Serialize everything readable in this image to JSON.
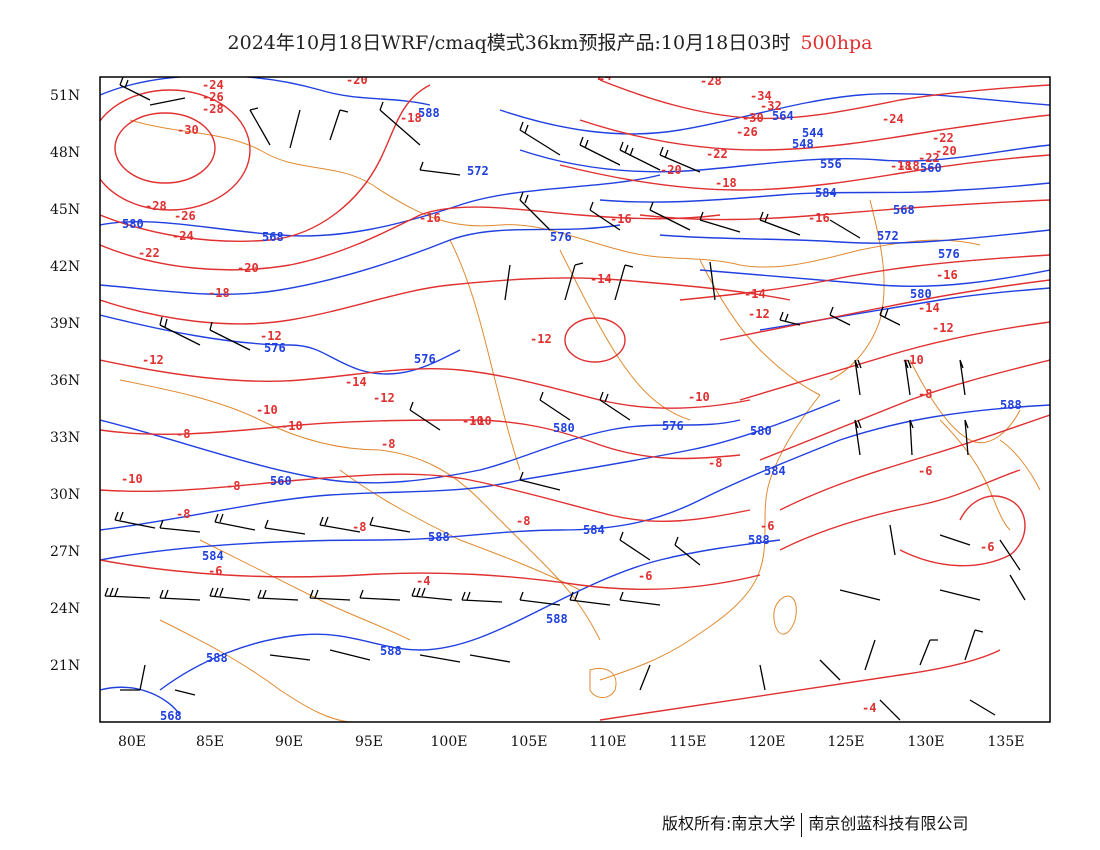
{
  "title": {
    "main": "2024年10月18日WRF/cmaq模式36km预报产品:10月18日03时",
    "level": "500hpa"
  },
  "axes": {
    "y_ticks": [
      "51N",
      "48N",
      "45N",
      "42N",
      "39N",
      "36N",
      "33N",
      "30N",
      "27N",
      "24N",
      "21N"
    ],
    "x_ticks": [
      "80E",
      "85E",
      "90E",
      "95E",
      "100E",
      "105E",
      "110E",
      "115E",
      "120E",
      "125E",
      "130E",
      "135E"
    ]
  },
  "footer": {
    "copyright": "版权所有:南京大学",
    "company": "南京创蓝科技有限公司"
  },
  "colors": {
    "height_contour": "#2040e0",
    "temperature_contour": "#e03030",
    "borders": "#e08a30",
    "wind_barbs": "#000000"
  },
  "legend": {
    "height_labels": [
      "588",
      "572",
      "576",
      "568",
      "580",
      "576",
      "576",
      "580",
      "576",
      "580",
      "584",
      "584",
      "588",
      "584",
      "588",
      "588",
      "588",
      "564",
      "560",
      "556",
      "548",
      "544",
      "568",
      "572",
      "576",
      "580",
      "584",
      "560",
      "588",
      "588",
      "568"
    ],
    "temperature_labels": [
      "-24",
      "-26",
      "-28",
      "-30",
      "-20",
      "-18",
      "-16",
      "-28",
      "-26",
      "-24",
      "-22",
      "-20",
      "-18",
      "-12",
      "-14",
      "-12",
      "-10",
      "-10",
      "-8",
      "-8",
      "-10",
      "-10",
      "-8",
      "-8",
      "-6",
      "-4",
      "-14",
      "-12",
      "-12",
      "-10",
      "-8",
      "-8",
      "-6",
      "-6",
      "-6",
      "-16",
      "-16",
      "-14",
      "-12",
      "-10",
      "-8",
      "-6",
      "-22",
      "-20",
      "-18",
      "-18",
      "-22",
      "-24",
      "-28",
      "-34",
      "-32",
      "-30",
      "-26",
      "-16",
      "-14",
      "-12",
      "-10",
      "-8",
      "-4",
      "-24",
      "-22",
      "-20",
      "-18"
    ]
  }
}
